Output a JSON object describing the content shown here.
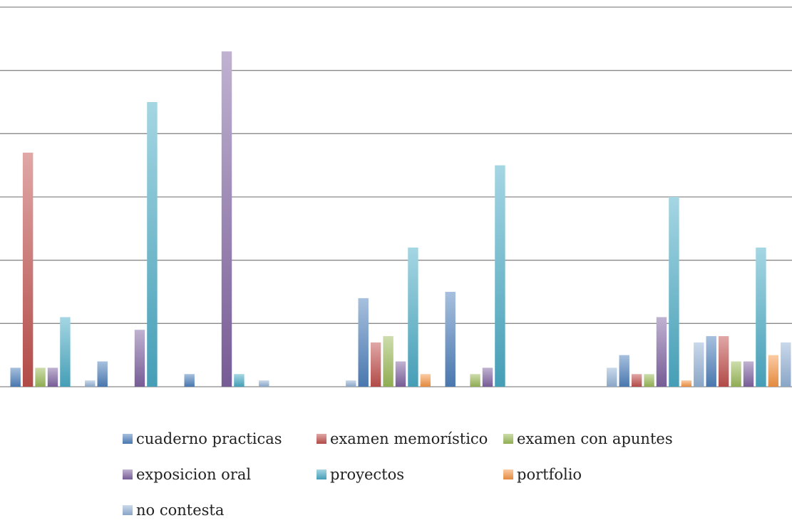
{
  "chart_data": {
    "type": "bar",
    "ylim": [
      0,
      60
    ],
    "gridlines": [
      0,
      10,
      20,
      30,
      40,
      50,
      60
    ],
    "grid": true,
    "legend_position": "bottom",
    "series": [
      {
        "name": "cuaderno practicas",
        "color": "#4F81BD",
        "values": [
          3,
          4,
          2,
          0,
          14,
          15,
          0,
          5,
          8
        ]
      },
      {
        "name": "examen memorístico",
        "color": "#C0504D",
        "values": [
          37,
          0,
          0,
          0,
          7,
          0,
          0,
          2,
          8
        ]
      },
      {
        "name": "examen con apuntes",
        "color": "#9BBB59",
        "values": [
          3,
          0,
          0,
          0,
          8,
          2,
          0,
          2,
          4
        ]
      },
      {
        "name": "exposicion oral",
        "color": "#8064A2",
        "values": [
          3,
          9,
          53,
          0,
          4,
          3,
          0,
          11,
          4
        ]
      },
      {
        "name": "proyectos",
        "color": "#4BACC6",
        "values": [
          11,
          45,
          2,
          0,
          22,
          35,
          0,
          30,
          22
        ]
      },
      {
        "name": "portfolio",
        "color": "#F79646",
        "values": [
          0,
          0,
          0,
          0,
          2,
          0,
          0,
          1,
          5
        ]
      },
      {
        "name": "no contesta",
        "color": "#95B3D7",
        "values": [
          1,
          0,
          1,
          1,
          0,
          0,
          3,
          7,
          7
        ]
      }
    ]
  },
  "legend": {
    "rows": [
      [
        {
          "key": 0
        },
        {
          "key": 1
        },
        {
          "key": 2
        }
      ],
      [
        {
          "key": 3
        },
        {
          "key": 4
        },
        {
          "key": 5
        }
      ],
      [
        {
          "key": 6
        }
      ]
    ]
  }
}
